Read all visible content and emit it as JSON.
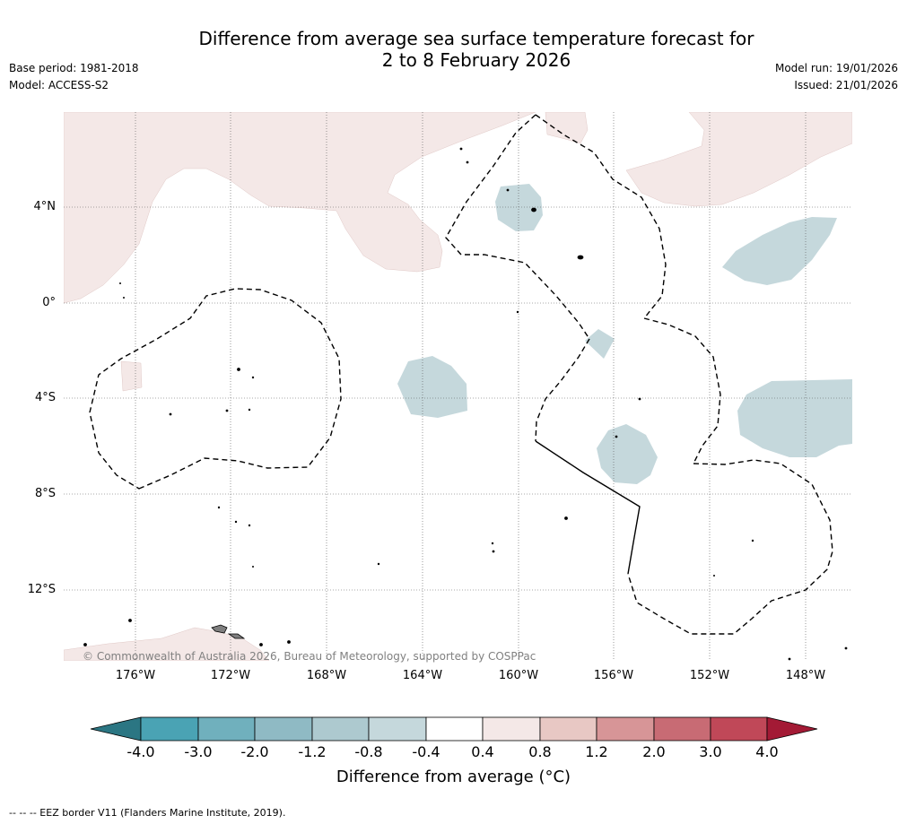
{
  "title": {
    "line1": "Difference from average sea surface temperature forecast for",
    "line2": "2 to 8 February 2026"
  },
  "meta_left": {
    "base_period": "Base period: 1981-2018",
    "model": "Model: ACCESS-S2"
  },
  "meta_right": {
    "model_run": "Model run: 19/01/2026",
    "issued": "Issued: 21/01/2026"
  },
  "map": {
    "latitude_labels": [
      "4°N",
      "0°",
      "4°S",
      "8°S",
      "12°S"
    ],
    "longitude_labels": [
      "176°W",
      "172°W",
      "168°W",
      "164°W",
      "160°W",
      "156°W",
      "152°W",
      "148°W"
    ],
    "copyright": "© Commonwealth of Australia 2026, Bureau of Meteorology, supported by COSPPac",
    "colors": {
      "warm_0_4_0_8": "#f4e8e7",
      "cool_neg_0_8_neg_0_4": "#c5d8dc",
      "land": "#7f7f7f",
      "eez_line": "#000000"
    }
  },
  "colorbar": {
    "ticks": [
      "-4.0",
      "-3.0",
      "-2.0",
      "-1.2",
      "-0.8",
      "-0.4",
      "0.4",
      "0.8",
      "1.2",
      "2.0",
      "3.0",
      "4.0"
    ],
    "colors": [
      "#2b7683",
      "#4aa3b4",
      "#70b0bd",
      "#8fbac4",
      "#adc9cf",
      "#c5d8dc",
      "#ffffff",
      "#f4e8e7",
      "#e8c8c4",
      "#d79597",
      "#c86b74",
      "#c04858",
      "#a31a35"
    ],
    "title": "Difference from average (°C)"
  },
  "footnote": "-- -- -- EEZ border V11 (Flanders Marine Institute, 2019)."
}
